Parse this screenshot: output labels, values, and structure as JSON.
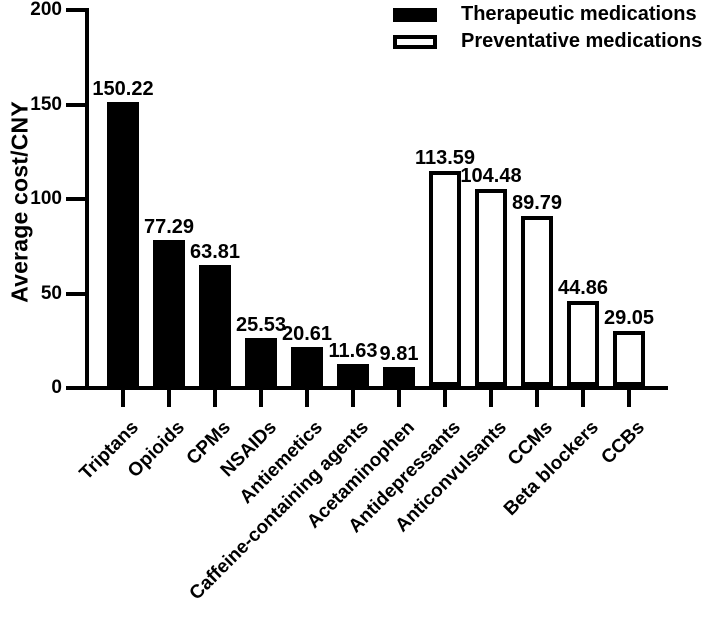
{
  "figure": {
    "background": "#ffffff",
    "foreground": "#000000"
  },
  "legend": {
    "items": [
      {
        "label": "Therapeutic medications",
        "fill": "#000000",
        "border": "#000000"
      },
      {
        "label": "Preventative medications",
        "fill": "#ffffff",
        "border": "#000000"
      }
    ]
  },
  "chart_data": {
    "type": "bar",
    "title": "",
    "xlabel": "",
    "ylabel": "Average cost/CNY",
    "ylim": [
      0,
      200
    ],
    "yticks": [
      0,
      50,
      100,
      150,
      200
    ],
    "grid": false,
    "legend_position": "top-right",
    "categories": [
      "Triptans",
      "Opioids",
      "CPMs",
      "NSAIDs",
      "Antiemetics",
      "Caffeine-containing agents",
      "Acetaminophen",
      "Antidepressants",
      "Anticonvulsants",
      "CCMs",
      "Beta blockers",
      "CCBs"
    ],
    "series": [
      {
        "name": "Therapeutic medications",
        "fill": "#000000",
        "categories": [
          "Triptans",
          "Opioids",
          "CPMs",
          "NSAIDs",
          "Antiemetics",
          "Caffeine-containing agents",
          "Acetaminophen"
        ],
        "values": [
          150.22,
          77.29,
          63.81,
          25.53,
          20.61,
          11.63,
          9.81
        ]
      },
      {
        "name": "Preventative medications",
        "fill": "#ffffff",
        "categories": [
          "Antidepressants",
          "Anticonvulsants",
          "CCMs",
          "Beta blockers",
          "CCBs"
        ],
        "values": [
          113.59,
          104.48,
          89.79,
          44.86,
          29.05
        ]
      }
    ],
    "bar_value_labels": [
      "150.22",
      "77.29",
      "63.81",
      "25.53",
      "20.61",
      "11.63",
      "9.81",
      "113.59",
      "104.48",
      "89.79",
      "44.86",
      "29.05"
    ]
  }
}
